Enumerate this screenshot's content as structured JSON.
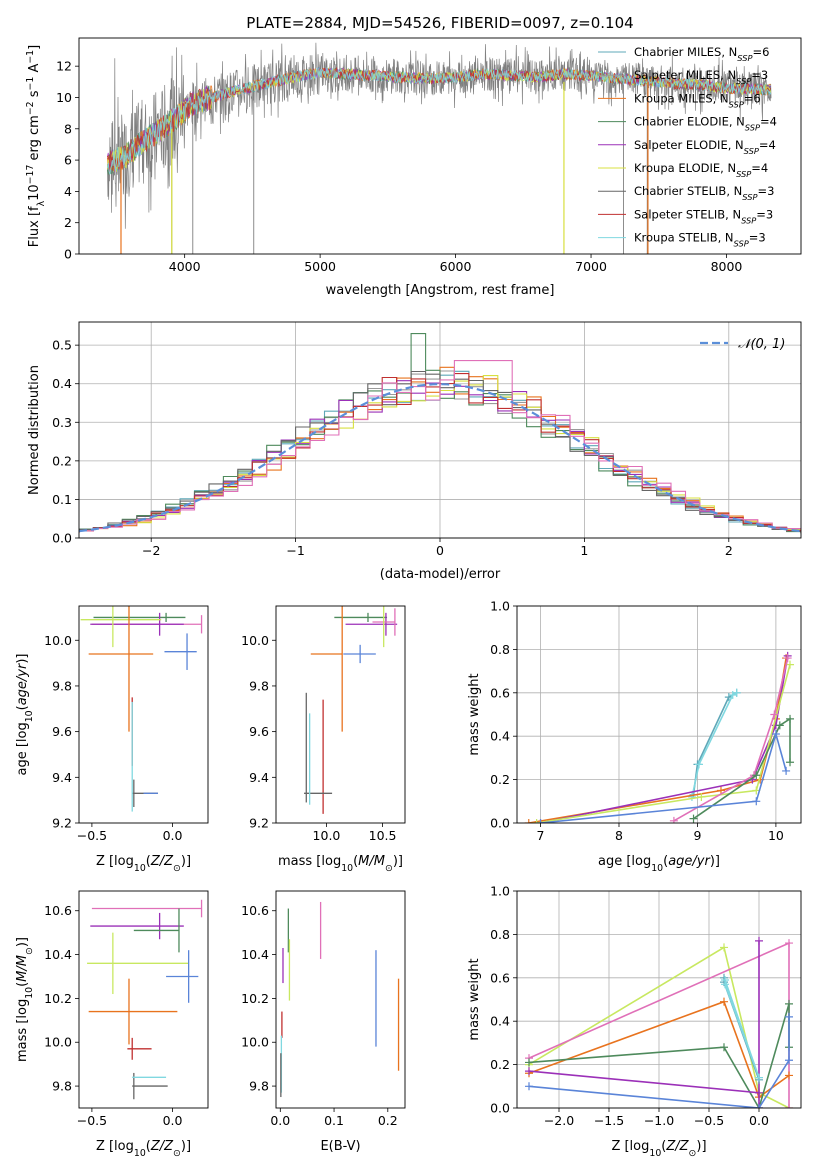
{
  "figure_title": "PLATE=2884, MJD=54526, FIBERID=0097, z=0.104",
  "colors": {
    "Chabrier MILES": "#5fa8b8",
    "Salpeter MILES": "#9a9a9a",
    "Kroupa MILES": "#e8731e",
    "Chabrier ELODIE": "#4e8a5c",
    "Salpeter ELODIE": "#9b30b8",
    "Kroupa ELODIE": "#d8e040",
    "Chabrier STELIB": "#666666",
    "Salpeter STELIB": "#c03030",
    "Kroupa STELIB": "#80d8e0",
    "extra_blue": "#5a84d8",
    "extra_pink": "#e070b8",
    "extra_olive": "#c8e860",
    "normal_dashed": "#5b8fd9"
  },
  "chart_data": [
    {
      "type": "line",
      "panel": "spectrum",
      "title": "PLATE=2884, MJD=54526, FIBERID=0097, z=0.104",
      "xlabel": "wavelength [Angstrom, rest frame]",
      "ylabel": "Flux [fλ10⁻¹⁷ erg cm⁻² s⁻¹ A⁻¹]",
      "xlim": [
        3220,
        8550
      ],
      "ylim": [
        0,
        13.8
      ],
      "xticks": [
        4000,
        5000,
        6000,
        7000,
        8000
      ],
      "yticks": [
        0,
        2,
        4,
        6,
        8,
        10,
        12
      ],
      "grid": false,
      "legend_position": "upper-right",
      "legend": [
        "Chabrier MILES, N_SSP=6",
        "Salpeter MILES, N_SSP=3",
        "Kroupa MILES, N_SSP=6",
        "Chabrier ELODIE, N_SSP=4",
        "Salpeter ELODIE, N_SSP=4",
        "Kroupa ELODIE, N_SSP=4",
        "Chabrier STELIB, N_SSP=3",
        "Salpeter STELIB, N_SSP=3",
        "Kroupa STELIB, N_SSP=3"
      ],
      "continuum": [
        [
          3430,
          5.8
        ],
        [
          3550,
          6.2
        ],
        [
          3700,
          7.2
        ],
        [
          3850,
          8.1
        ],
        [
          3950,
          8.8
        ],
        [
          4050,
          9.6
        ],
        [
          4200,
          10.0
        ],
        [
          4400,
          10.5
        ],
        [
          4600,
          10.9
        ],
        [
          4800,
          11.3
        ],
        [
          5000,
          11.6
        ],
        [
          5200,
          11.5
        ],
        [
          5400,
          11.4
        ],
        [
          5600,
          11.3
        ],
        [
          5800,
          11.2
        ],
        [
          6000,
          11.3
        ],
        [
          6200,
          11.5
        ],
        [
          6400,
          11.4
        ],
        [
          6600,
          11.3
        ],
        [
          6800,
          11.5
        ],
        [
          7000,
          11.4
        ],
        [
          7200,
          11.2
        ],
        [
          7400,
          11.1
        ],
        [
          7600,
          10.9
        ],
        [
          7800,
          10.8
        ],
        [
          8000,
          10.6
        ],
        [
          8300,
          10.5
        ]
      ],
      "deep_dips": [
        3530,
        3905,
        4060,
        4510,
        6800,
        7240,
        7415
      ]
    },
    {
      "type": "step",
      "panel": "residuals",
      "xlabel": "(data-model)/error",
      "ylabel": "Normed distribution",
      "xlim": [
        -2.5,
        2.5
      ],
      "ylim": [
        0,
        0.56
      ],
      "xticks": [
        -2,
        -1,
        0,
        1,
        2
      ],
      "yticks": [
        0.0,
        0.1,
        0.2,
        0.3,
        0.4,
        0.5
      ],
      "grid": true,
      "legend_position": "upper-right",
      "legend": [
        "𝒩(0, 1)"
      ],
      "bin_width": 0.1,
      "n_series": 9
    },
    {
      "type": "errorbar",
      "panel": "age-vs-Z",
      "xlabel": "Z [log₁₀(Z/Z⊙)]",
      "ylabel": "age  [log₁₀(age/yr)]",
      "xlim": [
        -0.58,
        0.22
      ],
      "ylim": [
        9.2,
        10.15
      ],
      "xticks": [
        -0.5,
        0.0
      ],
      "yticks": [
        9.2,
        9.4,
        9.6,
        9.8,
        10.0
      ],
      "points": [
        {
          "x": -0.04,
          "y": 10.1,
          "xerr": [
            0.45,
            0.12
          ],
          "yerr": 0.02,
          "c": "Chabrier ELODIE"
        },
        {
          "x": 0.18,
          "y": 10.07,
          "xerr": [
            0.68,
            0.0
          ],
          "yerr": 0.04,
          "c": "extra_pink"
        },
        {
          "x": -0.08,
          "y": 10.07,
          "xerr": [
            0.43,
            0.15
          ],
          "yerr": 0.05,
          "c": "Salpeter ELODIE"
        },
        {
          "x": -0.37,
          "y": 10.09,
          "xerr": [
            0.2,
            0.3
          ],
          "yerr": 0.12,
          "c": "extra_olive"
        },
        {
          "x": 0.09,
          "y": 9.95,
          "xerr": [
            0.14,
            0.06
          ],
          "yerr": 0.08,
          "c": "extra_blue"
        },
        {
          "x": -0.27,
          "y": 9.94,
          "xerr": [
            0.25,
            0.15
          ],
          "yerr": 0.34,
          "c": "Kroupa MILES"
        },
        {
          "x": -0.25,
          "y": 9.6,
          "xerr": [
            0.0,
            0.0
          ],
          "yerr": 0.15,
          "c": "Salpeter STELIB"
        },
        {
          "x": -0.24,
          "y": 9.33,
          "xerr": [
            0.01,
            0.15
          ],
          "yerr": 0.06,
          "c": "Chabrier STELIB"
        },
        {
          "x": -0.18,
          "y": 9.33,
          "xerr": [
            0.0,
            0.09
          ],
          "yerr": 0.0,
          "c": "extra_blue"
        },
        {
          "x": -0.25,
          "y": 9.49,
          "xerr": [
            0.0,
            0.0
          ],
          "yerr": 0.24,
          "c": "Kroupa STELIB"
        }
      ]
    },
    {
      "type": "errorbar",
      "panel": "age-vs-mass",
      "xlabel": "mass [log₁₀(M/M⊙)]",
      "ylabel": "",
      "xlim": [
        9.55,
        10.7
      ],
      "ylim": [
        9.2,
        10.15
      ],
      "xticks": [
        10.0,
        10.5
      ],
      "yticks": [
        9.2,
        9.4,
        9.6,
        9.8,
        10.0
      ],
      "points": [
        {
          "x": 10.37,
          "y": 10.1,
          "xerr": [
            0.3,
            0.17
          ],
          "yerr": 0.02,
          "c": "Chabrier ELODIE"
        },
        {
          "x": 10.53,
          "y": 10.07,
          "xerr": [
            0.36,
            0.1
          ],
          "yerr": 0.05,
          "c": "Salpeter ELODIE"
        },
        {
          "x": 10.61,
          "y": 10.08,
          "xerr": [
            0.2,
            0.0
          ],
          "yerr": 0.06,
          "c": "extra_pink"
        },
        {
          "x": 10.51,
          "y": 10.09,
          "xerr": [
            0.0,
            0.0
          ],
          "yerr": 0.12,
          "c": "extra_olive"
        },
        {
          "x": 10.3,
          "y": 9.94,
          "xerr": [
            0.15,
            0.14
          ],
          "yerr": 0.04,
          "c": "extra_blue"
        },
        {
          "x": 10.14,
          "y": 9.94,
          "xerr": [
            0.28,
            0.0
          ],
          "yerr": 0.34,
          "c": "Kroupa MILES"
        },
        {
          "x": 9.97,
          "y": 9.49,
          "xerr": [
            0.0,
            0.0
          ],
          "yerr": 0.25,
          "c": "Salpeter STELIB"
        },
        {
          "x": 9.82,
          "y": 9.53,
          "xerr": [
            0.0,
            0.0
          ],
          "yerr": 0.24,
          "c": "Chabrier STELIB"
        },
        {
          "x": 9.9,
          "y": 9.33,
          "xerr": [
            0.1,
            0.15
          ],
          "yerr": 0.0,
          "c": "Chabrier STELIB"
        },
        {
          "x": 9.85,
          "y": 9.48,
          "xerr": [
            0.0,
            0.0
          ],
          "yerr": 0.2,
          "c": "Kroupa STELIB"
        }
      ]
    },
    {
      "type": "line",
      "panel": "massweight-vs-age",
      "xlabel": "age  [log₁₀(age/yr)]",
      "ylabel": "mass weight",
      "xlim": [
        6.7,
        10.32
      ],
      "ylim": [
        0,
        1.0
      ],
      "xticks": [
        7,
        8,
        9,
        10
      ],
      "yticks": [
        0.0,
        0.2,
        0.4,
        0.6,
        0.8,
        1.0
      ],
      "grid": true,
      "series": [
        {
          "c": "Chabrier MILES",
          "x": [
            8.95,
            9.0,
            9.4,
            9.5
          ],
          "y": [
            0.13,
            0.27,
            0.58,
            0.6
          ]
        },
        {
          "c": "Kroupa STELIB",
          "x": [
            8.93,
            9.02,
            9.45,
            9.5
          ],
          "y": [
            0.12,
            0.27,
            0.59,
            0.6
          ]
        },
        {
          "c": "Kroupa MILES",
          "x": [
            6.85,
            9.3,
            9.8,
            10.0,
            10.13
          ],
          "y": [
            0.0,
            0.15,
            0.2,
            0.48,
            0.76
          ]
        },
        {
          "c": "Salpeter ELODIE",
          "x": [
            7.0,
            9.7,
            10.0,
            10.15
          ],
          "y": [
            0.0,
            0.2,
            0.45,
            0.77
          ]
        },
        {
          "c": "extra_olive",
          "x": [
            6.95,
            9.05,
            9.75,
            10.18
          ],
          "y": [
            0.0,
            0.12,
            0.15,
            0.73
          ]
        },
        {
          "c": "extra_pink",
          "x": [
            8.7,
            9.72,
            9.98,
            10.15
          ],
          "y": [
            0.01,
            0.22,
            0.5,
            0.76
          ]
        },
        {
          "c": "Chabrier ELODIE",
          "x": [
            8.95,
            9.75,
            10.05,
            10.18,
            10.18
          ],
          "y": [
            0.02,
            0.22,
            0.45,
            0.48,
            0.28
          ]
        },
        {
          "c": "extra_blue",
          "x": [
            7.0,
            9.75,
            10.0,
            10.13
          ],
          "y": [
            0.0,
            0.1,
            0.41,
            0.24
          ]
        }
      ]
    },
    {
      "type": "errorbar",
      "panel": "mass-vs-Z",
      "xlabel": "Z [log₁₀(Z/Z⊙)]",
      "ylabel": "mass [log₁₀(M/M⊙)]",
      "xlim": [
        -0.58,
        0.22
      ],
      "ylim": [
        9.7,
        10.69
      ],
      "xticks": [
        -0.5,
        0.0
      ],
      "yticks": [
        9.8,
        10.0,
        10.2,
        10.4,
        10.6
      ],
      "points": [
        {
          "x": 0.18,
          "y": 10.61,
          "xerr": [
            0.68,
            0.0
          ],
          "yerr": 0.04,
          "c": "extra_pink"
        },
        {
          "x": -0.08,
          "y": 10.53,
          "xerr": [
            0.43,
            0.15
          ],
          "yerr": 0.06,
          "c": "Salpeter ELODIE"
        },
        {
          "x": 0.04,
          "y": 10.51,
          "xerr": [
            0.28,
            0.0
          ],
          "yerr": 0.1,
          "c": "Chabrier ELODIE"
        },
        {
          "x": -0.37,
          "y": 10.36,
          "xerr": [
            0.16,
            0.47
          ],
          "yerr": 0.14,
          "c": "extra_olive"
        },
        {
          "x": 0.1,
          "y": 10.3,
          "xerr": [
            0.14,
            0.06
          ],
          "yerr": 0.12,
          "c": "extra_blue"
        },
        {
          "x": -0.27,
          "y": 10.14,
          "xerr": [
            0.25,
            0.3
          ],
          "yerr": 0.15,
          "c": "Kroupa MILES"
        },
        {
          "x": -0.25,
          "y": 9.97,
          "xerr": [
            0.03,
            0.12
          ],
          "yerr": 0.05,
          "c": "Salpeter STELIB"
        },
        {
          "x": -0.24,
          "y": 9.8,
          "xerr": [
            0.01,
            0.21
          ],
          "yerr": 0.06,
          "c": "Chabrier STELIB"
        },
        {
          "x": -0.18,
          "y": 9.84,
          "xerr": [
            0.07,
            0.14
          ],
          "yerr": 0.0,
          "c": "Kroupa STELIB"
        }
      ]
    },
    {
      "type": "errorbar",
      "panel": "mass-vs-EBV",
      "xlabel": "E(B-V)",
      "ylabel": "",
      "xlim": [
        -0.008,
        0.232
      ],
      "ylim": [
        9.7,
        10.69
      ],
      "xticks": [
        0.0,
        0.1,
        0.2
      ],
      "yticks": [
        9.8,
        10.0,
        10.2,
        10.4,
        10.6
      ],
      "points": [
        {
          "x": 0.075,
          "y": 10.51,
          "yerr": 0.13,
          "c": "extra_pink"
        },
        {
          "x": 0.015,
          "y": 10.51,
          "yerr": 0.1,
          "c": "Chabrier ELODIE"
        },
        {
          "x": 0.017,
          "y": 10.33,
          "yerr": 0.14,
          "c": "extra_olive"
        },
        {
          "x": 0.005,
          "y": 10.35,
          "yerr": 0.08,
          "c": "Salpeter ELODIE"
        },
        {
          "x": 0.178,
          "y": 10.2,
          "yerr": 0.22,
          "c": "extra_blue"
        },
        {
          "x": 0.22,
          "y": 10.08,
          "yerr": 0.21,
          "c": "Kroupa MILES"
        },
        {
          "x": 0.003,
          "y": 10.08,
          "yerr": 0.06,
          "c": "Salpeter STELIB"
        },
        {
          "x": 0.002,
          "y": 9.9,
          "yerr": 0.13,
          "c": "Kroupa STELIB"
        },
        {
          "x": 0.001,
          "y": 9.85,
          "yerr": 0.1,
          "c": "Chabrier STELIB"
        }
      ]
    },
    {
      "type": "line",
      "panel": "massweight-vs-Z",
      "xlabel": "Z [log₁₀(Z/Z⊙)]",
      "ylabel": "mass weight",
      "xlim": [
        -2.42,
        0.42
      ],
      "ylim": [
        0,
        1.0
      ],
      "xticks": [
        -2.0,
        -1.5,
        -1.0,
        -0.5,
        0.0
      ],
      "yticks": [
        0.0,
        0.2,
        0.4,
        0.6,
        0.8,
        1.0
      ],
      "grid": true,
      "series": [
        {
          "c": "extra_olive",
          "x": [
            -2.3,
            -0.35,
            0.0,
            0.3
          ],
          "y": [
            0.2,
            0.74,
            0.07,
            0.0
          ]
        },
        {
          "c": "extra_pink",
          "x": [
            -2.3,
            0.3,
            0.3
          ],
          "y": [
            0.23,
            0.76,
            0.0
          ]
        },
        {
          "c": "Kroupa MILES",
          "x": [
            -2.3,
            -0.35,
            0.0,
            0.3
          ],
          "y": [
            0.16,
            0.49,
            0.05,
            0.15
          ]
        },
        {
          "c": "Chabrier ELODIE",
          "x": [
            -2.3,
            -0.35,
            0.0,
            0.3,
            0.3
          ],
          "y": [
            0.21,
            0.28,
            0.0,
            0.48,
            0.28
          ]
        },
        {
          "c": "Salpeter ELODIE",
          "x": [
            -2.3,
            0.0,
            0.0,
            0.0
          ],
          "y": [
            0.17,
            0.07,
            0.77,
            0.0
          ]
        },
        {
          "c": "extra_blue",
          "x": [
            -2.3,
            0.0,
            0.3,
            0.3
          ],
          "y": [
            0.1,
            0.0,
            0.22,
            0.42
          ]
        },
        {
          "c": "Chabrier MILES",
          "x": [
            -0.35,
            0.0,
            -0.35
          ],
          "y": [
            0.6,
            0.13,
            0.58
          ]
        },
        {
          "c": "Kroupa STELIB",
          "x": [
            -0.34,
            0.0,
            -0.34
          ],
          "y": [
            0.59,
            0.14,
            0.57
          ]
        }
      ]
    }
  ]
}
